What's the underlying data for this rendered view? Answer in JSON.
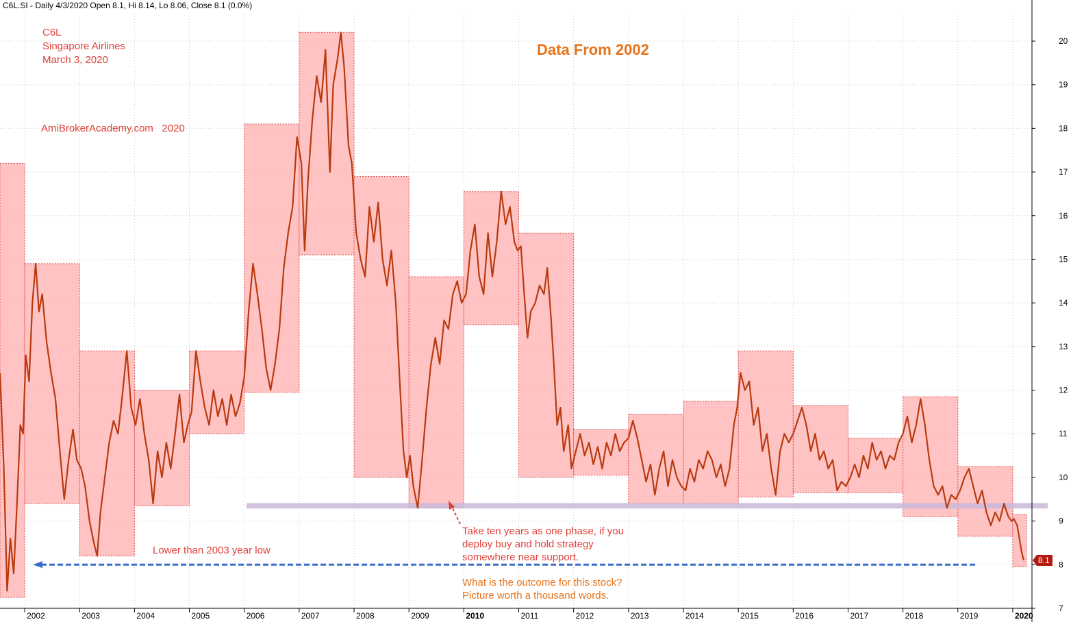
{
  "header": {
    "text": "C6L.SI - Daily 4/3/2020 Open 8.1, Hi 8.14, Lo 8.06, Close 8.1 (0.0%)"
  },
  "colors": {
    "price": "#b83a0f",
    "box_fill": "#ffb9b9",
    "box_border": "#e04b4b",
    "support": "#c9b8d8",
    "dashed_arrow": "#3a6fc9",
    "red_text": "#e0413a",
    "orange_text": "#e8731a",
    "grid": "#c8c8c8"
  },
  "annotations": {
    "ticker": "C6L",
    "company": "Singapore Airlines",
    "date": "March 3, 2020",
    "site": "AmiBrokerAcademy.com   2020",
    "title": "Data From 2002",
    "lower": "Lower than 2003 year low",
    "phase_1": "Take ten years as one phase, if you",
    "phase_2": "deploy buy and hold strategy",
    "phase_3": "somewhere near support.",
    "outcome_1": "What is the outcome for this stock?",
    "outcome_2": "Picture worth a thousand words."
  },
  "chart_data": {
    "type": "line",
    "y_axis": {
      "ylim": [
        7,
        20.5
      ],
      "ticks": [
        7,
        8,
        9,
        10,
        11,
        12,
        13,
        14,
        15,
        16,
        17,
        18,
        19,
        20
      ],
      "position": "right",
      "grid": true
    },
    "x_axis": {
      "ticks": [
        {
          "label": "2002",
          "x": 2002.0
        },
        {
          "label": "2003",
          "x": 2003.0
        },
        {
          "label": "2004",
          "x": 2004.0
        },
        {
          "label": "2005",
          "x": 2005.0
        },
        {
          "label": "2006",
          "x": 2006.0
        },
        {
          "label": "2007",
          "x": 2007.0
        },
        {
          "label": "2008",
          "x": 2008.0
        },
        {
          "label": "2009",
          "x": 2009.0
        },
        {
          "label": "2010",
          "x": 2010.0,
          "bold": true
        },
        {
          "label": "2011",
          "x": 2011.0
        },
        {
          "label": "2012",
          "x": 2012.0
        },
        {
          "label": "2013",
          "x": 2013.0
        },
        {
          "label": "2014",
          "x": 2014.0
        },
        {
          "label": "2015",
          "x": 2015.0
        },
        {
          "label": "2016",
          "x": 2016.0
        },
        {
          "label": "2017",
          "x": 2017.0
        },
        {
          "label": "2018",
          "x": 2018.0
        },
        {
          "label": "2019",
          "x": 2019.0
        },
        {
          "label": "2020",
          "x": 2020.0,
          "bold": true
        }
      ],
      "range": [
        2001.55,
        2020.35
      ],
      "grid": true
    },
    "last_price_label": "8.1",
    "last_price": 8.1,
    "support_level": 9.35,
    "low_2003_level": 8.0,
    "yearly_boxes": [
      {
        "year": 2001,
        "low": 7.25,
        "high": 17.2
      },
      {
        "year": 2002,
        "low": 9.4,
        "high": 14.9
      },
      {
        "year": 2003,
        "low": 8.2,
        "high": 12.9
      },
      {
        "year": 2004,
        "low": 9.35,
        "high": 12.0
      },
      {
        "year": 2005,
        "low": 11.0,
        "high": 12.9
      },
      {
        "year": 2006,
        "low": 11.95,
        "high": 18.1
      },
      {
        "year": 2007,
        "low": 15.1,
        "high": 20.2
      },
      {
        "year": 2008,
        "low": 10.0,
        "high": 16.9
      },
      {
        "year": 2009,
        "low": 9.3,
        "high": 14.6
      },
      {
        "year": 2010,
        "low": 13.5,
        "high": 16.55
      },
      {
        "year": 2011,
        "low": 10.0,
        "high": 15.6
      },
      {
        "year": 2012,
        "low": 10.05,
        "high": 11.1
      },
      {
        "year": 2013,
        "low": 9.4,
        "high": 11.45
      },
      {
        "year": 2014,
        "low": 9.4,
        "high": 11.75
      },
      {
        "year": 2015,
        "low": 9.55,
        "high": 12.9
      },
      {
        "year": 2016,
        "low": 9.65,
        "high": 11.65
      },
      {
        "year": 2017,
        "low": 9.65,
        "high": 10.9
      },
      {
        "year": 2018,
        "low": 9.1,
        "high": 11.85
      },
      {
        "year": 2019,
        "low": 8.65,
        "high": 10.25
      },
      {
        "year": 2020,
        "low": 7.95,
        "high": 9.15
      }
    ],
    "series": [
      {
        "name": "C6L.SI",
        "points": [
          [
            2001.55,
            12.4
          ],
          [
            2001.62,
            10.2
          ],
          [
            2001.68,
            7.4
          ],
          [
            2001.74,
            8.6
          ],
          [
            2001.8,
            7.8
          ],
          [
            2001.86,
            9.4
          ],
          [
            2001.92,
            11.2
          ],
          [
            2001.97,
            11.0
          ],
          [
            2002.02,
            12.8
          ],
          [
            2002.08,
            12.2
          ],
          [
            2002.14,
            14.0
          ],
          [
            2002.2,
            14.9
          ],
          [
            2002.26,
            13.8
          ],
          [
            2002.32,
            14.2
          ],
          [
            2002.4,
            13.1
          ],
          [
            2002.48,
            12.4
          ],
          [
            2002.56,
            11.8
          ],
          [
            2002.64,
            10.6
          ],
          [
            2002.72,
            9.5
          ],
          [
            2002.8,
            10.4
          ],
          [
            2002.88,
            11.1
          ],
          [
            2002.95,
            10.4
          ],
          [
            2003.03,
            10.2
          ],
          [
            2003.1,
            9.8
          ],
          [
            2003.18,
            9.0
          ],
          [
            2003.26,
            8.5
          ],
          [
            2003.32,
            8.2
          ],
          [
            2003.38,
            9.2
          ],
          [
            2003.46,
            10.0
          ],
          [
            2003.54,
            10.8
          ],
          [
            2003.62,
            11.3
          ],
          [
            2003.7,
            11.0
          ],
          [
            2003.78,
            11.9
          ],
          [
            2003.86,
            12.9
          ],
          [
            2003.94,
            11.6
          ],
          [
            2004.02,
            11.2
          ],
          [
            2004.1,
            11.8
          ],
          [
            2004.18,
            11.0
          ],
          [
            2004.26,
            10.4
          ],
          [
            2004.34,
            9.4
          ],
          [
            2004.42,
            10.6
          ],
          [
            2004.5,
            10.0
          ],
          [
            2004.58,
            10.8
          ],
          [
            2004.66,
            10.2
          ],
          [
            2004.74,
            11.0
          ],
          [
            2004.82,
            11.9
          ],
          [
            2004.9,
            10.8
          ],
          [
            2004.97,
            11.2
          ],
          [
            2005.04,
            11.5
          ],
          [
            2005.12,
            12.9
          ],
          [
            2005.2,
            12.2
          ],
          [
            2005.28,
            11.6
          ],
          [
            2005.36,
            11.2
          ],
          [
            2005.44,
            12.0
          ],
          [
            2005.52,
            11.4
          ],
          [
            2005.6,
            11.8
          ],
          [
            2005.68,
            11.2
          ],
          [
            2005.76,
            11.9
          ],
          [
            2005.84,
            11.4
          ],
          [
            2005.92,
            11.7
          ],
          [
            2006.0,
            12.3
          ],
          [
            2006.08,
            13.8
          ],
          [
            2006.16,
            14.9
          ],
          [
            2006.24,
            14.2
          ],
          [
            2006.32,
            13.4
          ],
          [
            2006.4,
            12.5
          ],
          [
            2006.48,
            12.0
          ],
          [
            2006.56,
            12.6
          ],
          [
            2006.64,
            13.4
          ],
          [
            2006.72,
            14.8
          ],
          [
            2006.8,
            15.6
          ],
          [
            2006.88,
            16.2
          ],
          [
            2006.96,
            17.8
          ],
          [
            2007.04,
            17.2
          ],
          [
            2007.1,
            15.2
          ],
          [
            2007.16,
            16.8
          ],
          [
            2007.24,
            18.2
          ],
          [
            2007.32,
            19.2
          ],
          [
            2007.4,
            18.6
          ],
          [
            2007.48,
            19.8
          ],
          [
            2007.56,
            17.0
          ],
          [
            2007.62,
            19.0
          ],
          [
            2007.7,
            19.6
          ],
          [
            2007.76,
            20.2
          ],
          [
            2007.82,
            19.4
          ],
          [
            2007.9,
            17.6
          ],
          [
            2007.96,
            17.2
          ],
          [
            2008.04,
            15.6
          ],
          [
            2008.12,
            15.0
          ],
          [
            2008.2,
            14.6
          ],
          [
            2008.28,
            16.2
          ],
          [
            2008.36,
            15.4
          ],
          [
            2008.44,
            16.3
          ],
          [
            2008.52,
            15.0
          ],
          [
            2008.6,
            14.4
          ],
          [
            2008.68,
            15.2
          ],
          [
            2008.76,
            14.0
          ],
          [
            2008.84,
            12.0
          ],
          [
            2008.9,
            10.6
          ],
          [
            2008.96,
            10.0
          ],
          [
            2009.02,
            10.5
          ],
          [
            2009.08,
            9.8
          ],
          [
            2009.16,
            9.3
          ],
          [
            2009.24,
            10.4
          ],
          [
            2009.32,
            11.6
          ],
          [
            2009.4,
            12.6
          ],
          [
            2009.48,
            13.2
          ],
          [
            2009.56,
            12.6
          ],
          [
            2009.64,
            13.6
          ],
          [
            2009.72,
            13.4
          ],
          [
            2009.8,
            14.2
          ],
          [
            2009.88,
            14.5
          ],
          [
            2009.96,
            14.0
          ],
          [
            2010.04,
            14.2
          ],
          [
            2010.12,
            15.2
          ],
          [
            2010.2,
            15.8
          ],
          [
            2010.28,
            14.6
          ],
          [
            2010.36,
            14.2
          ],
          [
            2010.44,
            15.6
          ],
          [
            2010.52,
            14.6
          ],
          [
            2010.6,
            15.4
          ],
          [
            2010.68,
            16.55
          ],
          [
            2010.76,
            15.8
          ],
          [
            2010.84,
            16.2
          ],
          [
            2010.92,
            15.4
          ],
          [
            2010.98,
            15.2
          ],
          [
            2011.04,
            15.3
          ],
          [
            2011.1,
            14.2
          ],
          [
            2011.16,
            13.2
          ],
          [
            2011.22,
            13.8
          ],
          [
            2011.3,
            14.0
          ],
          [
            2011.38,
            14.4
          ],
          [
            2011.46,
            14.2
          ],
          [
            2011.52,
            14.8
          ],
          [
            2011.58,
            13.8
          ],
          [
            2011.64,
            12.6
          ],
          [
            2011.7,
            11.2
          ],
          [
            2011.76,
            11.6
          ],
          [
            2011.82,
            10.6
          ],
          [
            2011.9,
            11.2
          ],
          [
            2011.96,
            10.2
          ],
          [
            2012.04,
            10.6
          ],
          [
            2012.12,
            11.0
          ],
          [
            2012.2,
            10.5
          ],
          [
            2012.28,
            10.8
          ],
          [
            2012.36,
            10.3
          ],
          [
            2012.44,
            10.7
          ],
          [
            2012.52,
            10.2
          ],
          [
            2012.6,
            10.8
          ],
          [
            2012.68,
            10.5
          ],
          [
            2012.76,
            11.0
          ],
          [
            2012.84,
            10.6
          ],
          [
            2012.92,
            10.8
          ],
          [
            2013.0,
            10.9
          ],
          [
            2013.08,
            11.3
          ],
          [
            2013.16,
            10.9
          ],
          [
            2013.24,
            10.4
          ],
          [
            2013.32,
            9.9
          ],
          [
            2013.4,
            10.3
          ],
          [
            2013.48,
            9.6
          ],
          [
            2013.56,
            10.2
          ],
          [
            2013.64,
            10.6
          ],
          [
            2013.72,
            9.8
          ],
          [
            2013.8,
            10.4
          ],
          [
            2013.88,
            10.0
          ],
          [
            2013.96,
            9.8
          ],
          [
            2014.04,
            9.7
          ],
          [
            2014.12,
            10.2
          ],
          [
            2014.2,
            9.9
          ],
          [
            2014.28,
            10.4
          ],
          [
            2014.36,
            10.2
          ],
          [
            2014.44,
            10.6
          ],
          [
            2014.52,
            10.4
          ],
          [
            2014.6,
            10.0
          ],
          [
            2014.68,
            10.3
          ],
          [
            2014.76,
            9.8
          ],
          [
            2014.84,
            10.2
          ],
          [
            2014.92,
            11.2
          ],
          [
            2014.98,
            11.6
          ],
          [
            2015.04,
            12.4
          ],
          [
            2015.12,
            12.0
          ],
          [
            2015.2,
            12.2
          ],
          [
            2015.28,
            11.2
          ],
          [
            2015.36,
            11.6
          ],
          [
            2015.44,
            10.6
          ],
          [
            2015.52,
            11.0
          ],
          [
            2015.6,
            10.2
          ],
          [
            2015.68,
            9.6
          ],
          [
            2015.76,
            10.6
          ],
          [
            2015.84,
            11.0
          ],
          [
            2015.92,
            10.8
          ],
          [
            2016.0,
            11.0
          ],
          [
            2016.08,
            11.3
          ],
          [
            2016.16,
            11.6
          ],
          [
            2016.24,
            11.2
          ],
          [
            2016.32,
            10.6
          ],
          [
            2016.4,
            11.0
          ],
          [
            2016.48,
            10.4
          ],
          [
            2016.56,
            10.6
          ],
          [
            2016.64,
            10.2
          ],
          [
            2016.72,
            10.4
          ],
          [
            2016.8,
            9.7
          ],
          [
            2016.88,
            9.9
          ],
          [
            2016.96,
            9.8
          ],
          [
            2017.04,
            10.0
          ],
          [
            2017.12,
            10.3
          ],
          [
            2017.2,
            10.0
          ],
          [
            2017.28,
            10.5
          ],
          [
            2017.36,
            10.2
          ],
          [
            2017.44,
            10.8
          ],
          [
            2017.52,
            10.4
          ],
          [
            2017.6,
            10.6
          ],
          [
            2017.68,
            10.2
          ],
          [
            2017.76,
            10.5
          ],
          [
            2017.84,
            10.4
          ],
          [
            2017.92,
            10.8
          ],
          [
            2018.0,
            11.0
          ],
          [
            2018.08,
            11.4
          ],
          [
            2018.16,
            10.8
          ],
          [
            2018.24,
            11.2
          ],
          [
            2018.32,
            11.8
          ],
          [
            2018.4,
            11.2
          ],
          [
            2018.48,
            10.4
          ],
          [
            2018.56,
            9.8
          ],
          [
            2018.64,
            9.6
          ],
          [
            2018.72,
            9.8
          ],
          [
            2018.8,
            9.3
          ],
          [
            2018.88,
            9.6
          ],
          [
            2018.96,
            9.5
          ],
          [
            2019.04,
            9.7
          ],
          [
            2019.12,
            10.0
          ],
          [
            2019.2,
            10.2
          ],
          [
            2019.28,
            9.8
          ],
          [
            2019.36,
            9.4
          ],
          [
            2019.44,
            9.7
          ],
          [
            2019.52,
            9.2
          ],
          [
            2019.6,
            8.9
          ],
          [
            2019.68,
            9.2
          ],
          [
            2019.76,
            9.0
          ],
          [
            2019.84,
            9.4
          ],
          [
            2019.92,
            9.1
          ],
          [
            2019.98,
            9.0
          ],
          [
            2020.02,
            9.05
          ],
          [
            2020.08,
            8.9
          ],
          [
            2020.12,
            8.6
          ],
          [
            2020.16,
            8.3
          ],
          [
            2020.2,
            8.1
          ]
        ]
      }
    ]
  }
}
